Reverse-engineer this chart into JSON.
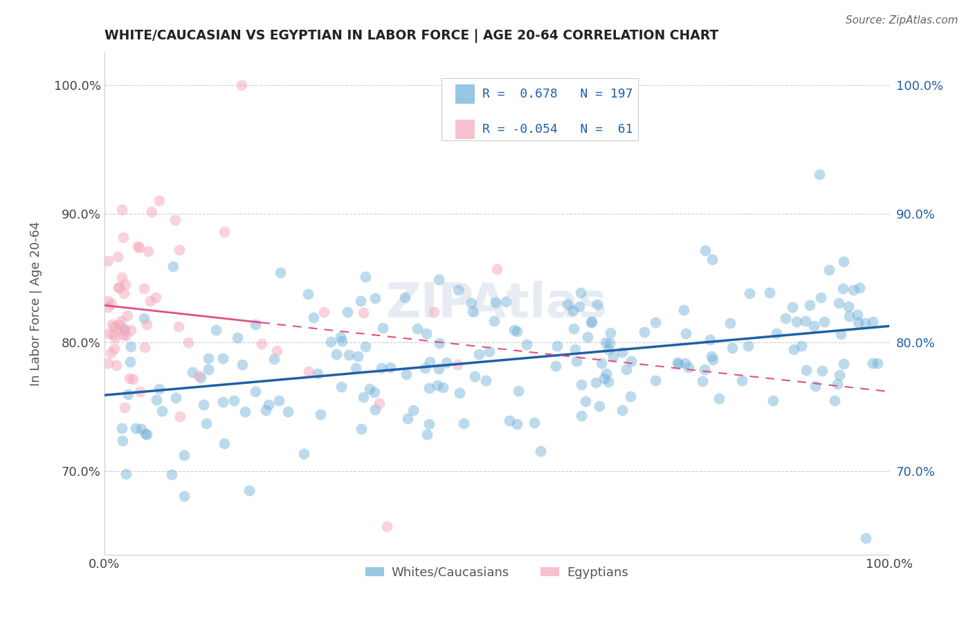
{
  "title": "WHITE/CAUCASIAN VS EGYPTIAN IN LABOR FORCE | AGE 20-64 CORRELATION CHART",
  "source": "Source: ZipAtlas.com",
  "ylabel": "In Labor Force | Age 20-64",
  "xlim": [
    0.0,
    1.0
  ],
  "ylim": [
    0.635,
    1.025
  ],
  "yticks": [
    0.7,
    0.8,
    0.9,
    1.0
  ],
  "ytick_labels": [
    "70.0%",
    "80.0%",
    "90.0%",
    "100.0%"
  ],
  "xticks": [
    0.0,
    1.0
  ],
  "xtick_labels": [
    "0.0%",
    "100.0%"
  ],
  "blue_R": 0.678,
  "blue_N": 197,
  "pink_R": -0.054,
  "pink_N": 61,
  "blue_color": "#6baed6",
  "pink_color": "#f4a7b9",
  "blue_line_color": "#1f5fa6",
  "pink_line_color": "#e05080",
  "legend_label_blue": "Whites/Caucasians",
  "legend_label_pink": "Egyptians",
  "watermark": "ZIPAtlas",
  "blue_seed": 12,
  "pink_seed": 7
}
